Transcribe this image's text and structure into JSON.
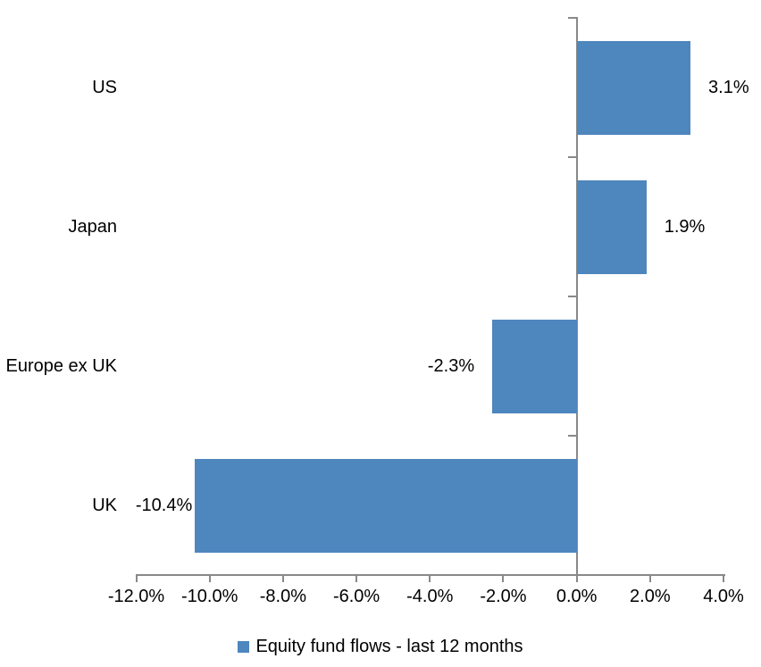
{
  "chart_data": {
    "type": "bar",
    "orientation": "horizontal",
    "title": "",
    "categories": [
      "US",
      "Japan",
      "Europe ex UK",
      "UK"
    ],
    "values": [
      3.1,
      1.9,
      -2.3,
      -10.4
    ],
    "value_labels": [
      "3.1%",
      "1.9%",
      "-2.3%",
      "-10.4%"
    ],
    "series": [
      {
        "name": "Equity fund flows - last 12 months",
        "values": [
          3.1,
          1.9,
          -2.3,
          -10.4
        ]
      }
    ],
    "legend": "Equity fund flows - last 12 months",
    "legend_position": "bottom",
    "x_ticks": [
      "-12.0%",
      "-10.0%",
      "-8.0%",
      "-6.0%",
      "-4.0%",
      "-2.0%",
      "0.0%",
      "2.0%",
      "4.0%"
    ],
    "x_tick_values": [
      -12,
      -10,
      -8,
      -6,
      -4,
      -2,
      0,
      2,
      4
    ],
    "xlim": [
      -12,
      4
    ],
    "xlabel": "",
    "ylabel": "",
    "grid": false,
    "bar_color": "#4E86BE",
    "axis_color": "#898989",
    "text_color": "#000000"
  }
}
